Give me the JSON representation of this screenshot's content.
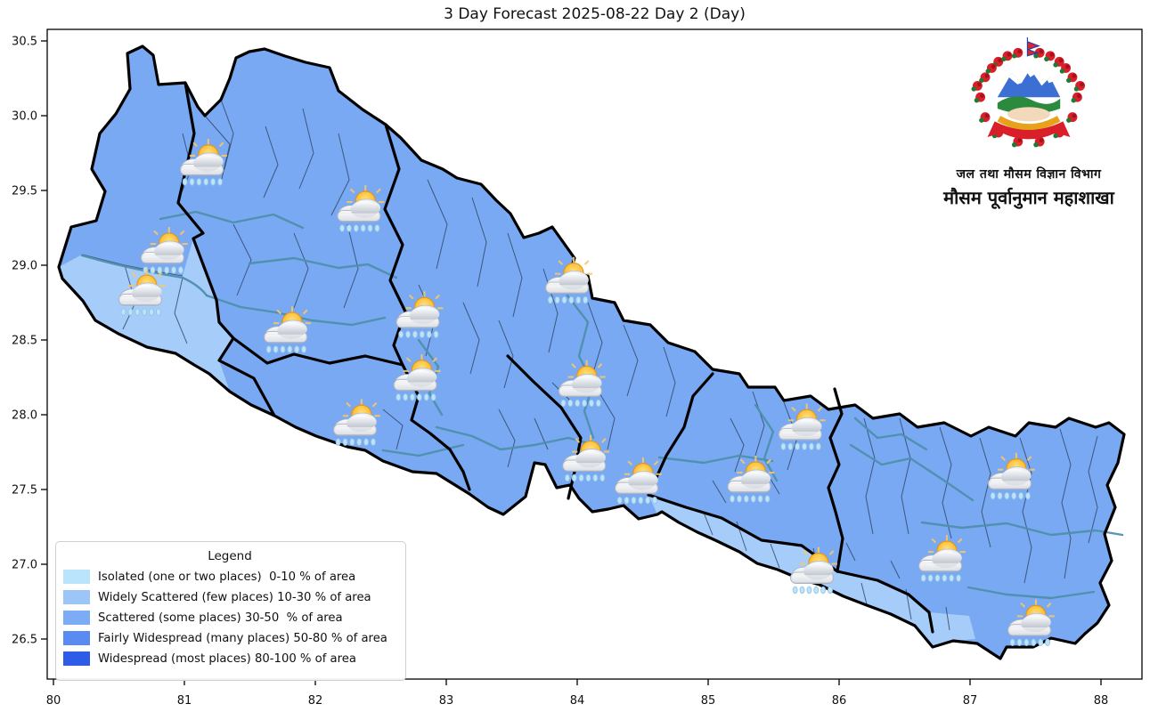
{
  "title": "3 Day Forecast 2025-08-22 Day 2 (Day)",
  "axes": {
    "x_ticks": [
      "80",
      "81",
      "82",
      "83",
      "84",
      "85",
      "86",
      "87",
      "88"
    ],
    "y_ticks": [
      "30.5",
      "30.0",
      "29.5",
      "29.0",
      "28.5",
      "28.0",
      "27.5",
      "27.0",
      "26.5"
    ]
  },
  "legend": {
    "title": "Legend",
    "items": [
      {
        "label": "Isolated (one or two places)  0-10 % of area",
        "color": "#b9e4fb"
      },
      {
        "label": "Widely Scattered (few places) 10-30 % of area",
        "color": "#9cc5f8"
      },
      {
        "label": "Scattered (some places) 30-50  % of area",
        "color": "#7dacf6"
      },
      {
        "label": "Fairly Widespread (many places) 50-80 % of area",
        "color": "#5a8bf2"
      },
      {
        "label": "Widespread (most places) 80-100 % of area",
        "color": "#2e5ce6"
      }
    ]
  },
  "branding": {
    "line1": "जल तथा मौसम विज्ञान विभाग",
    "line2": "मौसम पूर्वानुमान महाशाखा"
  },
  "map": {
    "fill_scattered": "#79a9f2",
    "fill_widely_scattered": "#a6cdf9",
    "shaded_light_regions": [
      "far-western-terai",
      "southern-madhesh-terai",
      "sunsari-morang-terai"
    ],
    "icon_condition": "sun-behind-rain-cloud",
    "forecast_icons": [
      {
        "lon": 81.14,
        "lat": 29.67
      },
      {
        "lon": 82.34,
        "lat": 29.36
      },
      {
        "lon": 80.84,
        "lat": 29.08
      },
      {
        "lon": 80.67,
        "lat": 28.8
      },
      {
        "lon": 81.78,
        "lat": 28.55
      },
      {
        "lon": 82.79,
        "lat": 28.65
      },
      {
        "lon": 83.93,
        "lat": 28.88
      },
      {
        "lon": 82.77,
        "lat": 28.23
      },
      {
        "lon": 82.31,
        "lat": 27.93
      },
      {
        "lon": 84.03,
        "lat": 28.19
      },
      {
        "lon": 84.06,
        "lat": 27.69
      },
      {
        "lon": 84.46,
        "lat": 27.54
      },
      {
        "lon": 85.32,
        "lat": 27.55
      },
      {
        "lon": 85.71,
        "lat": 27.9
      },
      {
        "lon": 87.31,
        "lat": 27.57
      },
      {
        "lon": 85.8,
        "lat": 26.94
      },
      {
        "lon": 86.78,
        "lat": 27.02
      },
      {
        "lon": 87.46,
        "lat": 26.59
      }
    ]
  }
}
